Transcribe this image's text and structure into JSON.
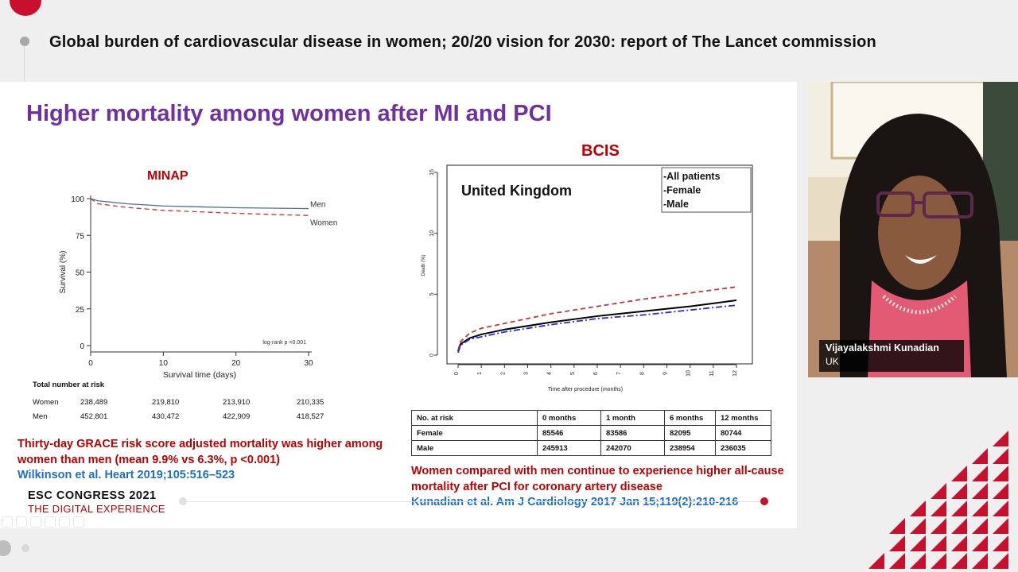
{
  "header": {
    "title": "Global burden of cardiovascular disease in women; 20/20 vision for 2030: report of The Lancet commission"
  },
  "slide": {
    "title": "Higher mortality among women after MI and PCI",
    "minap": {
      "label": "MINAP",
      "ylabel": "Survival (%)",
      "xlabel": "Survival time (days)",
      "logrank": "log-rank p <0.001",
      "yticks": [
        "100",
        "75",
        "50",
        "25",
        "0"
      ],
      "xticks": [
        "0",
        "10",
        "20",
        "30"
      ],
      "legend_men": "Men",
      "legend_women": "Women",
      "risk_header": "Total number at risk",
      "risk_rows": [
        {
          "label": "Women",
          "values": [
            "238,489",
            "219,810",
            "213,910",
            "210,335"
          ]
        },
        {
          "label": "Men",
          "values": [
            "452,801",
            "430,472",
            "422,909",
            "418,527"
          ]
        }
      ],
      "caption": "Thirty-day GRACE risk score adjusted mortality was higher among women than men (mean 9.9% vs 6.3%, p <0.001)",
      "reference": "Wilkinson et al. Heart 2019;105:516–523"
    },
    "bcis": {
      "label": "BCIS",
      "inset_title": "United Kingdom",
      "legend": [
        "-All patients",
        "-Female",
        "-Male"
      ],
      "ylabel": "Death (%)",
      "xlabel": "Time after procedure (months)",
      "yticks": [
        "15",
        "10",
        "5",
        "0"
      ],
      "xticks": [
        "0",
        "1",
        "2",
        "3",
        "4",
        "5",
        "6",
        "7",
        "8",
        "9",
        "10",
        "11",
        "12"
      ],
      "table_headers": [
        "No. at risk",
        "0 months",
        "1 month",
        "6 months",
        "12 months"
      ],
      "table_rows": [
        {
          "label": "Female",
          "values": [
            "85546",
            "83586",
            "82095",
            "80744"
          ]
        },
        {
          "label": "Male",
          "values": [
            "245913",
            "242070",
            "238954",
            "236035"
          ]
        }
      ],
      "caption": "Women compared with men continue to experience higher all-cause mortality after PCI for coronary artery disease",
      "reference": "Kunadian et al. Am J Cardiology 2017 Jan 15;119(2):210-216"
    }
  },
  "chart_data": [
    {
      "type": "line",
      "title": "MINAP",
      "xlabel": "Survival time (days)",
      "ylabel": "Survival (%)",
      "xlim": [
        0,
        30
      ],
      "ylim": [
        0,
        100
      ],
      "x": [
        0,
        1,
        5,
        10,
        20,
        30
      ],
      "series": [
        {
          "name": "Men",
          "values": [
            100,
            98.5,
            96.5,
            95,
            93.8,
            93.2
          ],
          "color": "#4e6e8e",
          "dash": "solid"
        },
        {
          "name": "Women",
          "values": [
            100,
            96.5,
            94,
            92,
            90,
            88.5
          ],
          "color": "#d03030",
          "dash": "dashed"
        }
      ],
      "annotation": "log-rank p <0.001"
    },
    {
      "type": "line",
      "title": "BCIS",
      "xlabel": "Time after procedure (months)",
      "ylabel": "Death (%)",
      "xlim": [
        0,
        12
      ],
      "ylim": [
        0,
        15
      ],
      "x": [
        0,
        0.1,
        0.5,
        1,
        2,
        4,
        6,
        8,
        10,
        12
      ],
      "series": [
        {
          "name": "All patients",
          "values": [
            0.3,
            0.9,
            1.4,
            1.7,
            2.1,
            2.7,
            3.2,
            3.6,
            4.0,
            4.5
          ],
          "color": "#000000",
          "dash": "solid"
        },
        {
          "name": "Female",
          "values": [
            0.4,
            1.1,
            1.8,
            2.2,
            2.6,
            3.4,
            4.0,
            4.6,
            5.1,
            5.6
          ],
          "color": "#c0393b",
          "dash": "dashed"
        },
        {
          "name": "Male",
          "values": [
            0.2,
            0.8,
            1.3,
            1.5,
            1.9,
            2.5,
            3.0,
            3.3,
            3.7,
            4.1
          ],
          "color": "#2b2bd6",
          "dash": "dashdot"
        }
      ]
    }
  ],
  "presenter": {
    "name": "Vijayalakshmi Kunadian",
    "country": "UK"
  },
  "branding": {
    "line1": "ESC CONGRESS 2021",
    "line2": "THE DIGITAL EXPERIENCE",
    "accent": "#c8102e"
  }
}
